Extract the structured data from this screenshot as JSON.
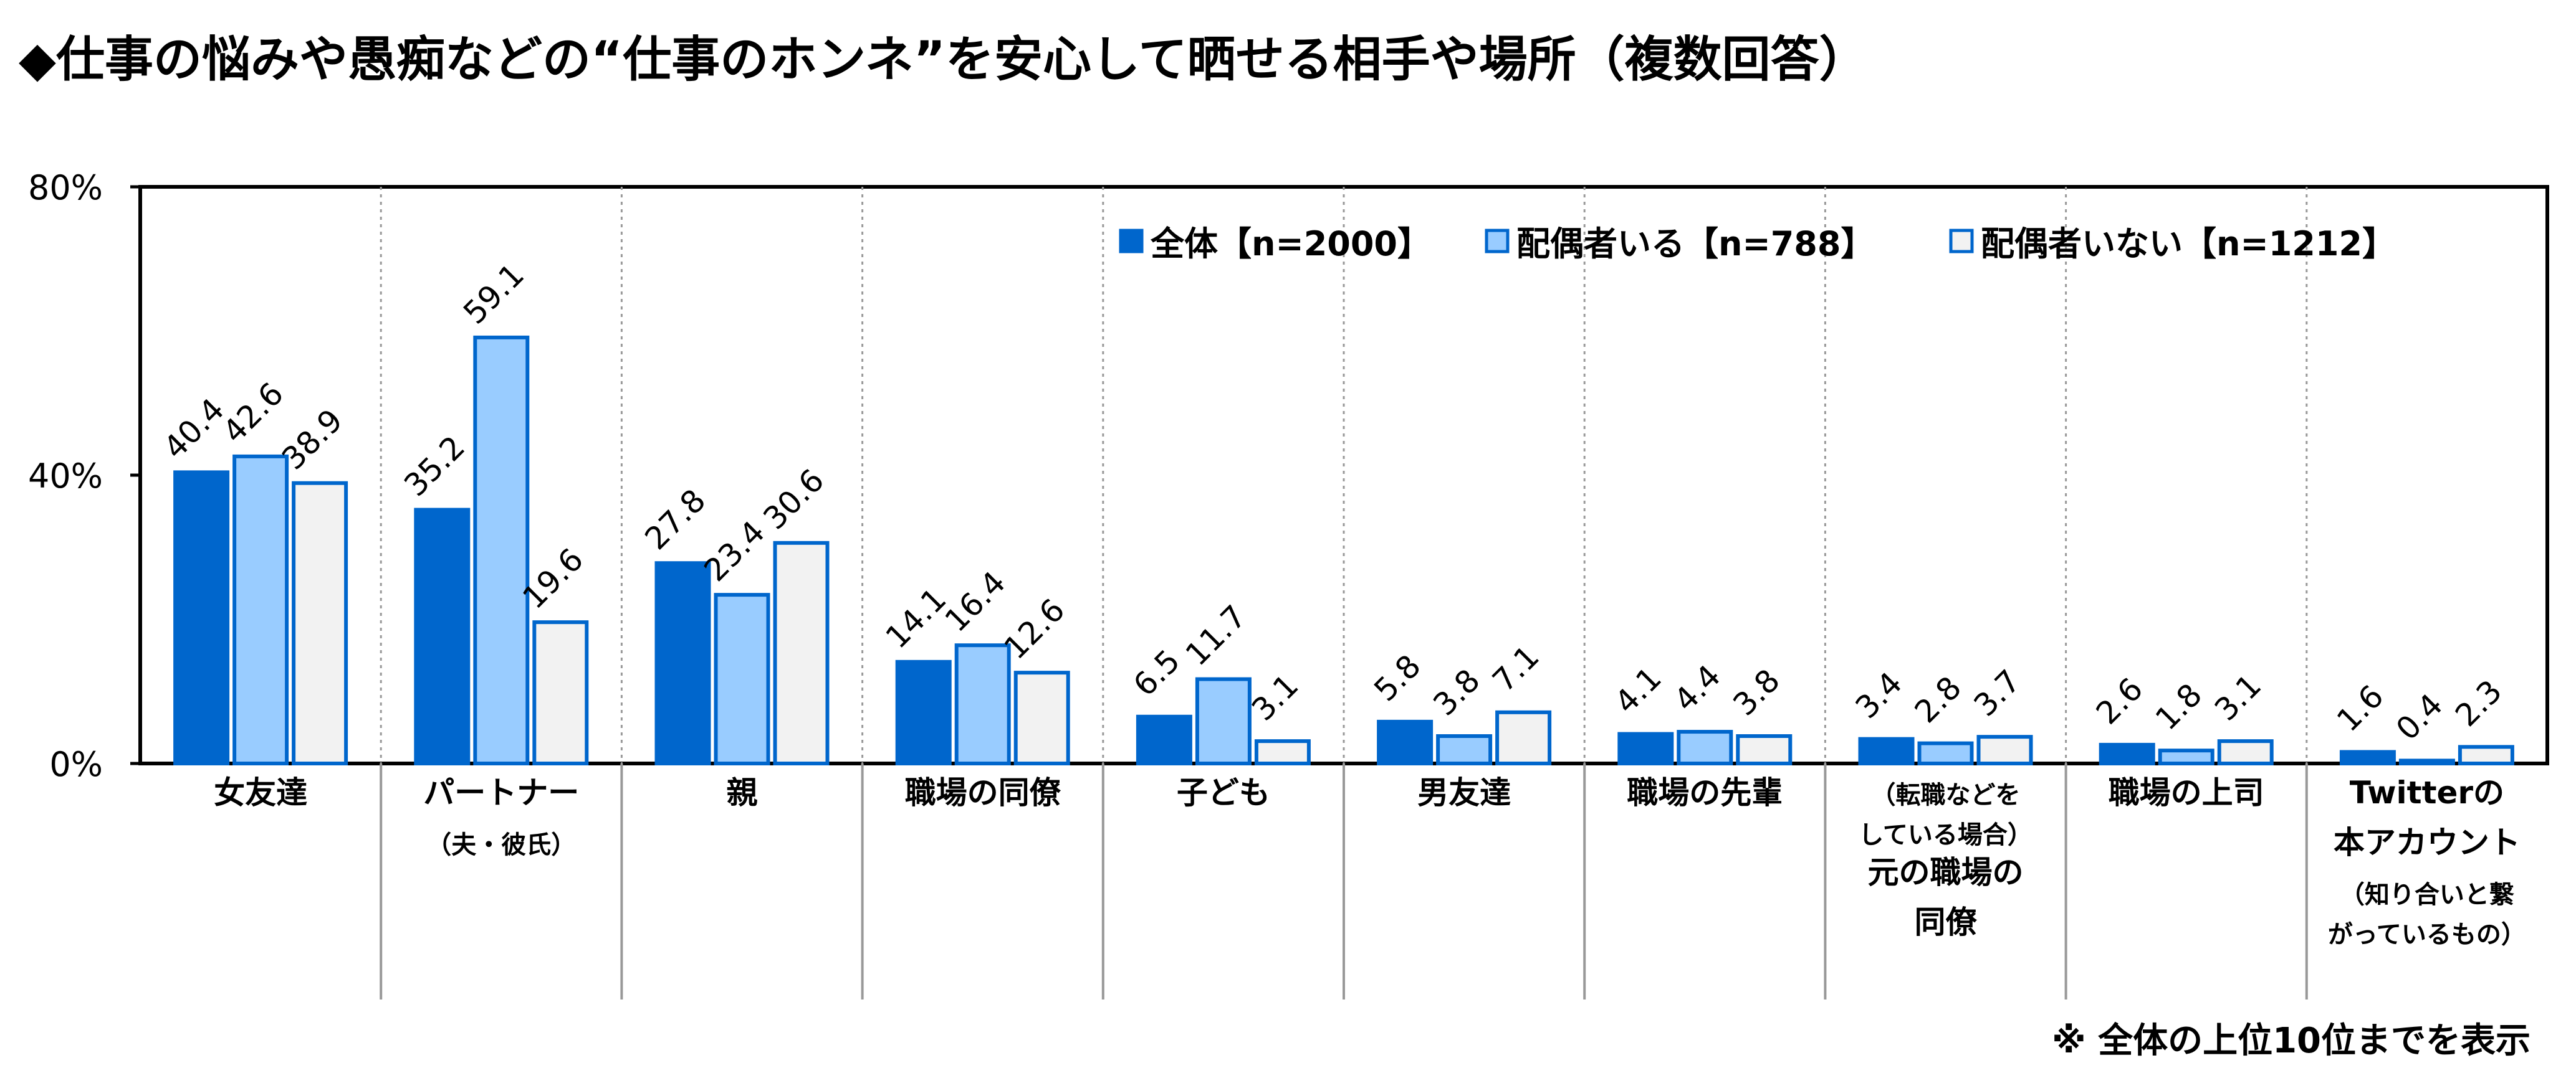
{
  "chart_data": {
    "type": "bar",
    "title": "◆仕事の悩みや愚痴などの“仕事のホンネ”を安心して晒せる相手や場所（複数回答）",
    "ytick_labels": [
      "0%",
      "40%",
      "80%"
    ],
    "ylim": [
      0,
      80
    ],
    "grid": false,
    "legend_position": "top-right",
    "categories": [
      {
        "lines": [
          {
            "text": "女友達",
            "size": "main"
          }
        ]
      },
      {
        "lines": [
          {
            "text": "パートナー",
            "size": "main"
          },
          {
            "text": "（夫・彼氏）",
            "size": "small"
          }
        ]
      },
      {
        "lines": [
          {
            "text": "親",
            "size": "main"
          }
        ]
      },
      {
        "lines": [
          {
            "text": "職場の同僚",
            "size": "main"
          }
        ]
      },
      {
        "lines": [
          {
            "text": "子ども",
            "size": "main"
          }
        ]
      },
      {
        "lines": [
          {
            "text": "男友達",
            "size": "main"
          }
        ]
      },
      {
        "lines": [
          {
            "text": "職場の先輩",
            "size": "main"
          }
        ]
      },
      {
        "lines": [
          {
            "text": "（転職などを",
            "size": "small"
          },
          {
            "text": "している場合）",
            "size": "small"
          },
          {
            "text": "元の職場の",
            "size": "main"
          },
          {
            "text": "同僚",
            "size": "main"
          }
        ]
      },
      {
        "lines": [
          {
            "text": "職場の上司",
            "size": "main"
          }
        ]
      },
      {
        "lines": [
          {
            "text": "Twitterの",
            "size": "main"
          },
          {
            "text": "本アカウント",
            "size": "main"
          },
          {
            "text": "（知り合いと繋",
            "size": "small"
          },
          {
            "text": "がっているもの）",
            "size": "small"
          }
        ]
      }
    ],
    "series": [
      {
        "name": "全体【n=2000】",
        "fill": "#0066cc",
        "stroke": "#0066cc",
        "values": [
          40.4,
          35.2,
          27.8,
          14.1,
          6.5,
          5.8,
          4.1,
          3.4,
          2.6,
          1.6
        ]
      },
      {
        "name": "配偶者いる【n=788】",
        "fill": "#99ccff",
        "stroke": "#0066cc",
        "values": [
          42.6,
          59.1,
          23.4,
          16.4,
          11.7,
          3.8,
          4.4,
          2.8,
          1.8,
          0.4
        ]
      },
      {
        "name": "配偶者いない【n=1212】",
        "fill": "#f2f2f2",
        "stroke": "#0066cc",
        "values": [
          38.9,
          19.6,
          30.6,
          12.6,
          3.1,
          7.1,
          3.8,
          3.7,
          3.1,
          2.3
        ]
      }
    ],
    "note": "※ 全体の上位10位までを表示"
  }
}
